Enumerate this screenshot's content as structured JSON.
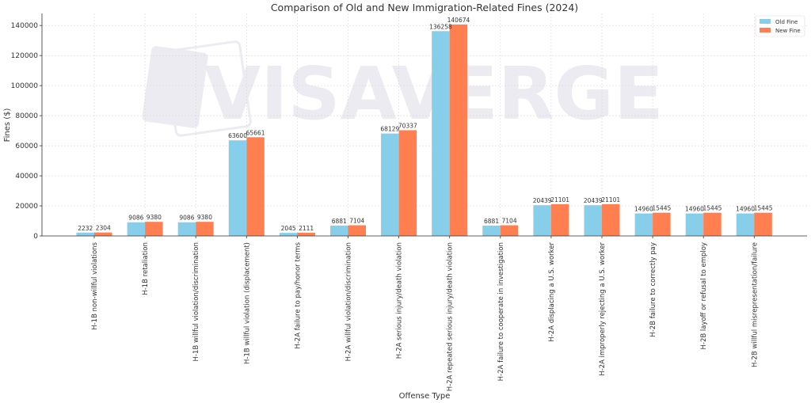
{
  "chart_data": {
    "type": "bar",
    "title": "Comparison of Old and New Immigration-Related Fines (2024)",
    "xlabel": "Offense Type",
    "ylabel": "Fines ($)",
    "ylim": [
      0,
      148000
    ],
    "yticks": [
      0,
      20000,
      40000,
      60000,
      80000,
      100000,
      120000,
      140000
    ],
    "grid": true,
    "legend_position": "top-right",
    "categories": [
      "H-1B non-willful violations",
      "H-1B retaliation",
      "H-1B willful violation/discrimination",
      "H-1B willful violation (displacement)",
      "H-2A failure to pay/honor terms",
      "H-2A willful violation/discrimination",
      "H-2A serious injury/death violation",
      "H-2A repeated serious injury/death violation",
      "H-2A failure to cooperate in investigation",
      "H-2A displacing a U.S. worker",
      "H-2A improperly rejecting a U.S. worker",
      "H-2B failure to correctly pay",
      "H-2B layoff or refusal to employ",
      "H-2B willful misrepresentation/failure"
    ],
    "series": [
      {
        "name": "Old Fine",
        "color": "#87CEEB",
        "values": [
          2232,
          9086,
          9086,
          63600,
          2045,
          6881,
          68129,
          136258,
          6881,
          20439,
          20439,
          14960,
          14960,
          14960
        ]
      },
      {
        "name": "New Fine",
        "color": "#FF7F50",
        "values": [
          2304,
          9380,
          9380,
          65661,
          2111,
          7104,
          70337,
          140674,
          7104,
          21101,
          21101,
          15445,
          15445,
          15445
        ]
      }
    ]
  },
  "watermark": "VISAVERGE"
}
